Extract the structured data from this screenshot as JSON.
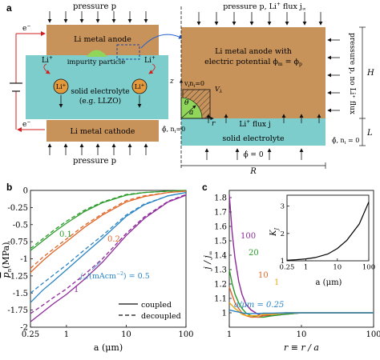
{
  "panel_a": {
    "label": "a",
    "left": {
      "pressure_top": "pressure p",
      "pressure_bottom": "pressure p",
      "anode": "Li metal anode",
      "impurity": "impurity particle",
      "electrolyte_line1": "solid electrolyte",
      "electrolyte_line2": "(e.g. LLZO)",
      "cathode": "Li metal cathode",
      "li_ion": "Li",
      "li_ion_sup": "+",
      "electron": "e",
      "electron_sup": "−"
    },
    "right": {
      "top": "pressure p, Li",
      "top_sup": "+",
      "top_tail": " flux j",
      "top_sub": "∞",
      "anode_line1": "Li metal anode with",
      "anode_line2": "electric potential ϕ",
      "anode_line2_sub": "m",
      "anode_line2_tail": " = ϕ",
      "anode_line2_sub2": "p",
      "side_right": "pressure p, no Li⁺ flux",
      "flux": "Li",
      "flux_sup": "+",
      "flux_tail": " flux j",
      "electrolyte": "solid electrolyte",
      "phi_bottom": "ϕ̂ = 0",
      "phi_corner": "ϕ̂, n",
      "phi_corner_sub": "i",
      "phi_corner_tail": " = 0",
      "phi_left": "ϕ̂, n",
      "phi_left_sub": "i",
      "phi_left_tail": "=0",
      "v_cond": "v",
      "v_cond_sub": "i",
      "v_cond_tail": "n",
      "v_cond_sub2": "i",
      "v_cond_end": "=0",
      "v_lambda": "V",
      "v_lambda_sub": "λ",
      "dim_z": "z",
      "dim_H": "H",
      "dim_L": "L",
      "dim_R": "R",
      "dim_r": "r",
      "theta": "θ",
      "a": "a"
    }
  },
  "panel_b": {
    "label": "b",
    "ylabel_main": "p",
    "ylabel_sub": "n",
    "ylabel_units": "(MPa)",
    "xlabel": "a (μm)",
    "xticks": [
      "0.25",
      "1",
      "10",
      "100"
    ],
    "yticks": [
      "0",
      "-0.25",
      "-0.5",
      "-0.75",
      "-1",
      "-1.25",
      "-1.5",
      "-1.75",
      "-2"
    ],
    "legend": {
      "coupled": "coupled",
      "decoupled": "decoupled"
    },
    "annotation_text": "j",
    "annotation_sub": "∞",
    "annotation_tail": "/(mAcm",
    "annotation_sup": "−2",
    "annotation_end": ") = 0.5",
    "curve_labels": [
      "0.1",
      "0.2",
      "1"
    ]
  },
  "panel_c": {
    "label": "c",
    "ylabel": "j / j",
    "ylabel_sub": "∞",
    "xlabel": "r ≡ r / a",
    "xticks": [
      "1",
      "10",
      "100"
    ],
    "yticks": [
      "1",
      "1.1",
      "1.2",
      "1.3",
      "1.4",
      "1.5",
      "1.6",
      "1.7",
      "1.8"
    ],
    "annotation": "a/μm = 0.25",
    "curve_labels": [
      "100",
      "20",
      "10",
      "1"
    ],
    "inset": {
      "ylabel": "K",
      "ylabel_sub": "J",
      "xlabel": "a (μm)",
      "xticks": [
        "0.25",
        "1",
        "10",
        "100"
      ],
      "yticks": [
        "1",
        "2",
        "3"
      ]
    }
  },
  "colors": {
    "anode": "#c8935a",
    "electrolyte": "#7ecdcd",
    "impurity": "#8fd65a",
    "ion": "#e29a3c",
    "green": "#2a9a2a",
    "orange": "#e0672a",
    "blue": "#2a84c4",
    "purple": "#8e2a9a",
    "gold": "#e8a818",
    "circuit": "#d22020"
  },
  "chart_data": [
    {
      "type": "line",
      "title": "",
      "xlabel": "a (μm)",
      "ylabel": "p̄n (MPa)",
      "x_scale": "log",
      "xlim": [
        0.25,
        100
      ],
      "ylim": [
        -2,
        0
      ],
      "legend_placement": "bottom-right",
      "series": [
        {
          "name": "0.1",
          "style": "solid",
          "color": "#2a9a2a",
          "x": [
            0.25,
            0.4,
            0.6,
            1,
            2,
            4,
            10,
            20,
            50,
            100
          ],
          "y": [
            -0.88,
            -0.74,
            -0.62,
            -0.48,
            -0.31,
            -0.18,
            -0.07,
            -0.03,
            -0.01,
            0
          ]
        },
        {
          "name": "0.1",
          "style": "dashed",
          "color": "#2a9a2a",
          "x": [
            0.25,
            0.4,
            0.6,
            1,
            2,
            4,
            10,
            20,
            50,
            100
          ],
          "y": [
            -0.85,
            -0.71,
            -0.59,
            -0.45,
            -0.29,
            -0.17,
            -0.06,
            -0.03,
            -0.01,
            0
          ]
        },
        {
          "name": "0.2",
          "style": "solid",
          "color": "#e0672a",
          "x": [
            0.25,
            0.4,
            0.6,
            1,
            2,
            4,
            10,
            20,
            50,
            100
          ],
          "y": [
            -1.2,
            -1.03,
            -0.9,
            -0.75,
            -0.54,
            -0.36,
            -0.17,
            -0.09,
            -0.03,
            -0.01
          ]
        },
        {
          "name": "0.2",
          "style": "dashed",
          "color": "#e0672a",
          "x": [
            0.25,
            0.4,
            0.6,
            1,
            2,
            4,
            10,
            20,
            50,
            100
          ],
          "y": [
            -1.14,
            -0.98,
            -0.86,
            -0.71,
            -0.51,
            -0.34,
            -0.15,
            -0.08,
            -0.03,
            -0.01
          ]
        },
        {
          "name": "0.5",
          "style": "solid",
          "color": "#2a84c4",
          "x": [
            0.25,
            0.4,
            0.6,
            1,
            2,
            4,
            10,
            20,
            50,
            100
          ],
          "y": [
            -1.64,
            -1.46,
            -1.33,
            -1.16,
            -0.93,
            -0.7,
            -0.38,
            -0.21,
            -0.08,
            -0.03
          ]
        },
        {
          "name": "0.5",
          "style": "dashed",
          "color": "#2a84c4",
          "x": [
            0.25,
            0.4,
            0.6,
            1,
            2,
            4,
            10,
            20,
            50,
            100
          ],
          "y": [
            -1.5,
            -1.36,
            -1.24,
            -1.09,
            -0.87,
            -0.66,
            -0.36,
            -0.2,
            -0.08,
            -0.03
          ]
        },
        {
          "name": "1",
          "style": "solid",
          "color": "#8e2a9a",
          "x": [
            0.25,
            0.4,
            0.6,
            1,
            2,
            4,
            10,
            20,
            50,
            100
          ],
          "y": [
            -1.92,
            -1.78,
            -1.66,
            -1.52,
            -1.3,
            -1.05,
            -0.66,
            -0.41,
            -0.17,
            -0.07
          ]
        },
        {
          "name": "1",
          "style": "dashed",
          "color": "#8e2a9a",
          "x": [
            0.25,
            0.4,
            0.6,
            1,
            2,
            4,
            10,
            20,
            50,
            100
          ],
          "y": [
            -1.8,
            -1.68,
            -1.57,
            -1.44,
            -1.23,
            -1.0,
            -0.63,
            -0.39,
            -0.16,
            -0.06
          ]
        }
      ]
    },
    {
      "type": "line",
      "title": "",
      "xlabel": "r̄ ≡ r/a",
      "ylabel": "j/j∞",
      "x_scale": "log",
      "xlim": [
        1,
        100
      ],
      "ylim": [
        0.9,
        1.85
      ],
      "series": [
        {
          "name": "100",
          "color": "#8e2a9a",
          "x": [
            1,
            1.1,
            1.2,
            1.35,
            1.5,
            1.7,
            2,
            2.5,
            3,
            4,
            6,
            10,
            20,
            100
          ],
          "y": [
            1.82,
            1.55,
            1.38,
            1.22,
            1.13,
            1.06,
            1.02,
            0.99,
            0.98,
            0.98,
            0.99,
            1.0,
            1.0,
            1.0
          ]
        },
        {
          "name": "20",
          "color": "#2a9a2a",
          "x": [
            1,
            1.1,
            1.2,
            1.35,
            1.5,
            1.7,
            2,
            2.5,
            3,
            4,
            6,
            10,
            20,
            100
          ],
          "y": [
            1.3,
            1.2,
            1.13,
            1.07,
            1.03,
            1.0,
            0.98,
            0.97,
            0.97,
            0.98,
            0.99,
            1.0,
            1.0,
            1.0
          ]
        },
        {
          "name": "10",
          "color": "#e0672a",
          "x": [
            1,
            1.1,
            1.2,
            1.35,
            1.5,
            1.7,
            2,
            2.5,
            3,
            4,
            6,
            10,
            20,
            100
          ],
          "y": [
            1.18,
            1.12,
            1.07,
            1.03,
            1.0,
            0.98,
            0.97,
            0.97,
            0.98,
            0.99,
            1.0,
            1.0,
            1.0,
            1.0
          ]
        },
        {
          "name": "1",
          "color": "#e8a818",
          "x": [
            1,
            1.1,
            1.2,
            1.35,
            1.5,
            1.7,
            2,
            2.5,
            3,
            4,
            6,
            10,
            20,
            100
          ],
          "y": [
            1.07,
            1.05,
            1.03,
            1.01,
            0.99,
            0.98,
            0.98,
            0.98,
            0.99,
            0.99,
            1.0,
            1.0,
            1.0,
            1.0
          ]
        },
        {
          "name": "0.25",
          "color": "#2a84c4",
          "x": [
            1,
            1.1,
            1.2,
            1.35,
            1.5,
            1.7,
            2,
            2.5,
            3,
            4,
            6,
            10,
            20,
            100
          ],
          "y": [
            1.02,
            1.015,
            1.01,
            1.005,
            1.0,
            0.995,
            0.995,
            0.995,
            0.997,
            0.998,
            1.0,
            1.0,
            1.0,
            1.0
          ]
        }
      ]
    },
    {
      "type": "line",
      "title": "",
      "xlabel": "a (μm)",
      "ylabel": "KJ",
      "x_scale": "log",
      "xlim": [
        0.25,
        100
      ],
      "ylim": [
        1,
        3.4
      ],
      "series": [
        {
          "name": "KJ",
          "color": "#000000",
          "x": [
            0.25,
            0.5,
            1,
            2,
            5,
            10,
            20,
            50,
            100
          ],
          "y": [
            1.02,
            1.04,
            1.07,
            1.12,
            1.25,
            1.45,
            1.75,
            2.35,
            3.15
          ]
        }
      ]
    }
  ]
}
